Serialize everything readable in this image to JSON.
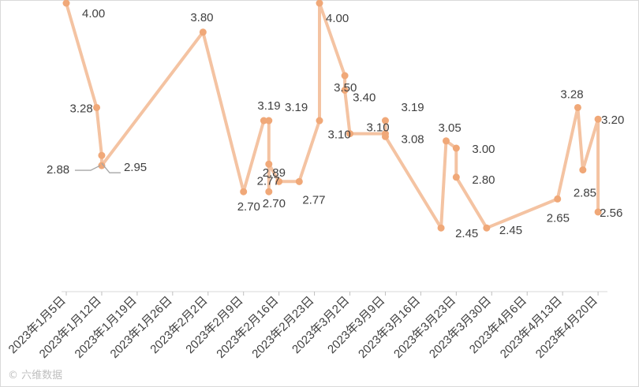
{
  "chart_data": {
    "type": "line",
    "title": "",
    "xlabel": "",
    "ylabel": "",
    "ylim": [
      2.0,
      4.0
    ],
    "grid": false,
    "line_color": "#F4C3A2",
    "marker_color": "#F0A878",
    "x_ticks": [
      "2023年1月5日",
      "2023年1月12日",
      "2023年1月19日",
      "2023年1月26日",
      "2023年2月2日",
      "2023年2月9日",
      "2023年2月16日",
      "2023年2月23日",
      "2023年3月2日",
      "2023年3月9日",
      "2023年3月16日",
      "2023年3月23日",
      "2023年3月30日",
      "2023年4月6日",
      "2023年4月13日",
      "2023年4月20日"
    ],
    "series": [
      {
        "points": [
          {
            "x": "2023-01-05",
            "y": 4.0,
            "label": "4.00"
          },
          {
            "x": "2023-01-11",
            "y": 3.28,
            "label": "3.28"
          },
          {
            "x": "2023-01-12",
            "y": 2.95,
            "label": "2.95"
          },
          {
            "x": "2023-01-12",
            "y": 2.88,
            "label": "2.88"
          },
          {
            "x": "2023-02-01",
            "y": 3.8,
            "label": "3.80"
          },
          {
            "x": "2023-02-09",
            "y": 2.7,
            "label": "2.70"
          },
          {
            "x": "2023-02-13",
            "y": 3.19,
            "label": "3.19"
          },
          {
            "x": "2023-02-14",
            "y": 3.19,
            "label": ""
          },
          {
            "x": "2023-02-14",
            "y": 2.7,
            "label": "2.70"
          },
          {
            "x": "2023-02-14",
            "y": 2.89,
            "label": "2.89"
          },
          {
            "x": "2023-02-16",
            "y": 2.77,
            "label": "2.77"
          },
          {
            "x": "2023-02-20",
            "y": 2.77,
            "label": "2.77"
          },
          {
            "x": "2023-02-24",
            "y": 3.19,
            "label": "3.19"
          },
          {
            "x": "2023-02-24",
            "y": 4.0,
            "label": "4.00"
          },
          {
            "x": "2023-02-29",
            "y": 3.5,
            "label": "3.50"
          },
          {
            "x": "2023-03-01",
            "y": 3.4,
            "label": "3.40"
          },
          {
            "x": "2023-03-02",
            "y": 3.1,
            "label": "3.10"
          },
          {
            "x": "2023-03-09",
            "y": 3.1,
            "label": "3.10"
          },
          {
            "x": "2023-03-09",
            "y": 3.19,
            "label": "3.19"
          },
          {
            "x": "2023-03-09",
            "y": 3.08,
            "label": "3.08"
          },
          {
            "x": "2023-03-20",
            "y": 2.45,
            "label": "2.45"
          },
          {
            "x": "2023-03-21",
            "y": 3.05,
            "label": "3.05"
          },
          {
            "x": "2023-03-23",
            "y": 3.0,
            "label": "3.00"
          },
          {
            "x": "2023-03-23",
            "y": 2.8,
            "label": "2.80"
          },
          {
            "x": "2023-03-29",
            "y": 2.45,
            "label": "2.45"
          },
          {
            "x": "2023-04-12",
            "y": 2.65,
            "label": "2.65"
          },
          {
            "x": "2023-04-16",
            "y": 3.28,
            "label": "3.28"
          },
          {
            "x": "2023-04-17",
            "y": 2.85,
            "label": "2.85"
          },
          {
            "x": "2023-04-20",
            "y": 3.2,
            "label": "3.20"
          },
          {
            "x": "2023-04-20",
            "y": 2.56,
            "label": "2.56"
          }
        ]
      }
    ]
  },
  "watermark": "© 六维数据"
}
